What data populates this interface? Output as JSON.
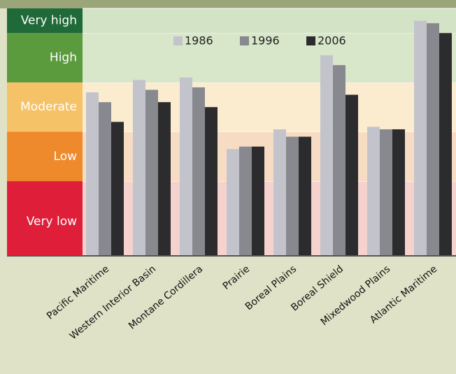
{
  "chart_data": {
    "type": "bar",
    "categories": [
      "Pacific Maritime",
      "Western Interior Basin",
      "Montane Cordillera",
      "Prairie",
      "Boreal Plains",
      "Boreal Shield",
      "Mixedwood Plains",
      "Atlantic Maritime"
    ],
    "series": [
      {
        "name": "1986",
        "color": "#c3c4cb",
        "values": [
          66,
          71,
          72,
          43,
          51,
          81,
          52,
          95
        ]
      },
      {
        "name": "1996",
        "color": "#88898f",
        "values": [
          62,
          67,
          68,
          44,
          48,
          77,
          51,
          94
        ]
      },
      {
        "name": "2006",
        "color": "#2c2c2f",
        "values": [
          54,
          62,
          60,
          44,
          48,
          65,
          51,
          90
        ]
      }
    ],
    "bands": [
      {
        "label": "Very low",
        "from": 0,
        "to": 30,
        "color": "#df1f3a",
        "tint": "#f5d2cd"
      },
      {
        "label": "Low",
        "from": 30,
        "to": 50,
        "color": "#ee8a2c",
        "tint": "#f7dcc4"
      },
      {
        "label": "Moderate",
        "from": 50,
        "to": 70,
        "color": "#f6c267",
        "tint": "#fbebcf"
      },
      {
        "label": "High",
        "from": 70,
        "to": 90,
        "color": "#5b9a3d",
        "tint": "#d8e6c9"
      },
      {
        "label": "Very high",
        "from": 90,
        "to": 100,
        "color": "#1f6a38",
        "tint": "#d3e3c6"
      }
    ],
    "ylim": [
      0,
      100
    ],
    "legend": "top"
  }
}
